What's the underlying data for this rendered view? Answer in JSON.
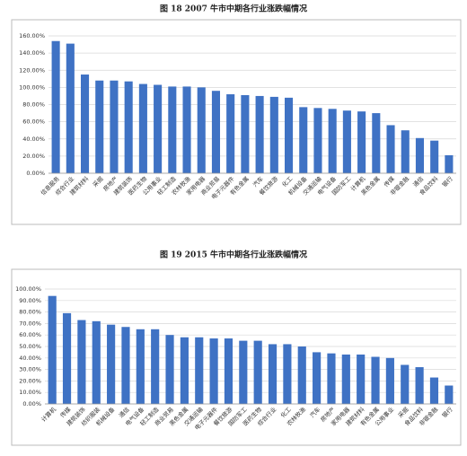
{
  "chart_data": [
    {
      "type": "bar",
      "title": "图 18   2007 牛市中期各行业涨跌幅情况",
      "color": "#3f72c4",
      "grid": true,
      "categories": [
        "信息服务",
        "综合行业",
        "建筑材料",
        "采掘",
        "房地产",
        "建筑装饰",
        "医药生物",
        "公用事业",
        "轻工制造",
        "农林牧渔",
        "家用电器",
        "商业贸易",
        "电子元器件",
        "有色金属",
        "汽车",
        "餐饮旅游",
        "化工",
        "机械设备",
        "交通运输",
        "电气设备",
        "国防军工",
        "计算机",
        "黑色金属",
        "传媒",
        "非银金融",
        "通信",
        "食品饮料",
        "银行"
      ],
      "values": [
        154,
        151,
        115,
        108,
        108,
        107,
        104,
        103,
        101,
        101,
        100,
        96,
        92,
        91,
        90,
        89,
        88,
        77,
        76,
        75,
        73,
        72,
        70,
        56,
        50,
        41,
        38,
        21
      ],
      "ylim": [
        0,
        160
      ],
      "yticks": [
        {
          "value": 0,
          "label": "0.00%"
        },
        {
          "value": 20,
          "label": "20.00%"
        },
        {
          "value": 40,
          "label": "40.00%"
        },
        {
          "value": 60,
          "label": "60.00%"
        },
        {
          "value": 80,
          "label": "80.00%"
        },
        {
          "value": 100,
          "label": "100.00%"
        },
        {
          "value": 120,
          "label": "120.00%"
        },
        {
          "value": 140,
          "label": "140.00%"
        },
        {
          "value": 160,
          "label": "160.00%"
        }
      ]
    },
    {
      "type": "bar",
      "title": "图 19   2015 牛市中期各行业涨跌幅情况",
      "color": "#3f72c4",
      "grid": true,
      "categories": [
        "计算机",
        "传媒",
        "建筑装饰",
        "纺织服装",
        "机械设备",
        "通信",
        "电气设备",
        "轻工制造",
        "商业贸易",
        "黑色金属",
        "交通运输",
        "电子元器件",
        "餐饮旅游",
        "国防军工",
        "医药生物",
        "综合行业",
        "化工",
        "农林牧渔",
        "汽车",
        "房地产",
        "家用电器",
        "建筑材料",
        "有色金属",
        "公用事业",
        "采掘",
        "食品饮料",
        "非银金融",
        "银行"
      ],
      "values": [
        94,
        79,
        73,
        72,
        69,
        67,
        65,
        65,
        60,
        58,
        58,
        57,
        57,
        55,
        55,
        52,
        52,
        50,
        45,
        44,
        43,
        43,
        41,
        40,
        34,
        32,
        23,
        16
      ],
      "ylim": [
        0,
        100
      ],
      "yticks": [
        {
          "value": 0,
          "label": "0.00%"
        },
        {
          "value": 10,
          "label": "10.00%"
        },
        {
          "value": 20,
          "label": "20.00%"
        },
        {
          "value": 30,
          "label": "30.00%"
        },
        {
          "value": 40,
          "label": "40.00%"
        },
        {
          "value": 50,
          "label": "50.00%"
        },
        {
          "value": 60,
          "label": "60.00%"
        },
        {
          "value": 70,
          "label": "70.00%"
        },
        {
          "value": 80,
          "label": "80.00%"
        },
        {
          "value": 90,
          "label": "90.00%"
        },
        {
          "value": 100,
          "label": "100.00%"
        }
      ]
    }
  ]
}
